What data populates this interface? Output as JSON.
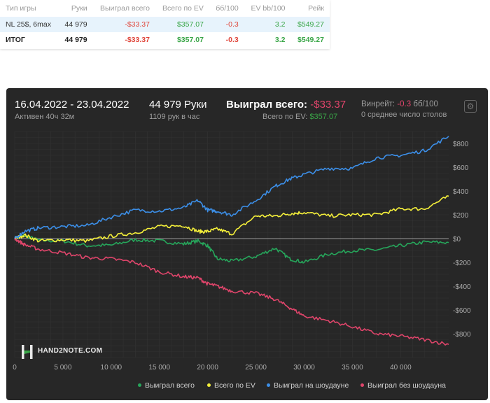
{
  "table": {
    "headers": [
      "Тип игры",
      "Руки",
      "Выиграл всего",
      "Всего по EV",
      "бб/100",
      "EV bb/100",
      "Рейк"
    ],
    "rows": [
      [
        "NL 25$, 6max",
        "44 979",
        "-$33.37",
        "$357.07",
        "-0.3",
        "3.2",
        "$549.27"
      ],
      [
        "ИТОГ",
        "44 979",
        "-$33.37",
        "$357.07",
        "-0.3",
        "3.2",
        "$549.27"
      ]
    ]
  },
  "header": {
    "date_range": "16.04.2022 - 23.04.2022",
    "active": "Активен 40ч 32м",
    "hands": "44 979 Руки",
    "hands_per_hour": "1109 рук в час",
    "won_label": "Выиграл всего:",
    "won_value": "-$33.37",
    "ev_label": "Всего по EV:",
    "ev_value": "$357.07",
    "winrate_label": "Винрейт:",
    "winrate_value": "-0.3",
    "winrate_unit": "бб/100",
    "tables": "0 среднее число столов"
  },
  "logo": "HAND2NOTE.COM",
  "colors": {
    "won": "#26a65b",
    "ev": "#f5f03a",
    "showdown": "#3c8fe8",
    "nonshowdown": "#e0456b",
    "negative": "#e0453a",
    "positive": "#3aa648",
    "panel_bg": "#272727"
  },
  "chart_data": {
    "type": "line",
    "x_ticks": [
      "0",
      "5 000",
      "10 000",
      "15 000",
      "20 000",
      "25 000",
      "30 000",
      "35 000",
      "40 000"
    ],
    "y_ticks": [
      "$800",
      "$600",
      "$400",
      "$200",
      "$0",
      "-$200",
      "-$400",
      "-$600",
      "-$800"
    ],
    "xlim": [
      0,
      44979
    ],
    "ylim": [
      -1000,
      900
    ],
    "grid": true,
    "legend_position": "bottom-right",
    "x": [
      0,
      1000,
      2500,
      5000,
      7500,
      10000,
      12500,
      15000,
      17500,
      19000,
      20000,
      21000,
      22500,
      25000,
      27000,
      28500,
      30000,
      32500,
      35000,
      37500,
      40000,
      42500,
      44979
    ],
    "series": [
      {
        "name": "Выиграл всего",
        "color": "#26a65b",
        "values": [
          0,
          25,
          -15,
          -20,
          -60,
          -55,
          -10,
          -20,
          -45,
          -20,
          -60,
          -170,
          -190,
          -150,
          -80,
          -170,
          -200,
          -130,
          -100,
          -95,
          -60,
          -30,
          -33
        ]
      },
      {
        "name": "Всего по EV",
        "color": "#f5f03a",
        "values": [
          0,
          30,
          -20,
          -10,
          -20,
          20,
          50,
          100,
          110,
          60,
          60,
          80,
          40,
          190,
          190,
          210,
          220,
          190,
          200,
          200,
          250,
          250,
          357
        ]
      },
      {
        "name": "Выиграл на шоудауне",
        "color": "#3c8fe8",
        "values": [
          0,
          60,
          90,
          100,
          110,
          180,
          240,
          230,
          260,
          320,
          240,
          230,
          200,
          320,
          440,
          500,
          540,
          590,
          590,
          680,
          700,
          740,
          860
        ]
      },
      {
        "name": "Выиграл без шоудауна",
        "color": "#e0456b",
        "values": [
          0,
          -50,
          -90,
          -120,
          -160,
          -170,
          -200,
          -280,
          -320,
          -330,
          -380,
          -400,
          -440,
          -460,
          -510,
          -580,
          -650,
          -690,
          -740,
          -800,
          -820,
          -850,
          -890
        ]
      }
    ]
  }
}
